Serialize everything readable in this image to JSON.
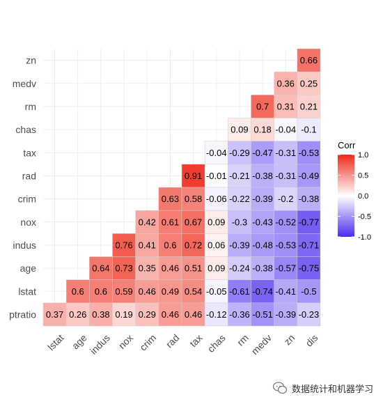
{
  "chart_data": {
    "type": "heatmap",
    "row_labels": [
      "zn",
      "medv",
      "rm",
      "chas",
      "tax",
      "rad",
      "crim",
      "nox",
      "indus",
      "age",
      "lstat",
      "ptratio"
    ],
    "col_labels": [
      "lstat",
      "age",
      "indus",
      "nox",
      "crim",
      "rad",
      "tax",
      "chas",
      "rm",
      "medv",
      "zn",
      "dis"
    ],
    "values": [
      [
        null,
        null,
        null,
        null,
        null,
        null,
        null,
        null,
        null,
        null,
        null,
        0.66
      ],
      [
        null,
        null,
        null,
        null,
        null,
        null,
        null,
        null,
        null,
        null,
        0.36,
        0.25
      ],
      [
        null,
        null,
        null,
        null,
        null,
        null,
        null,
        null,
        null,
        0.7,
        0.31,
        0.21
      ],
      [
        null,
        null,
        null,
        null,
        null,
        null,
        null,
        null,
        0.09,
        0.18,
        -0.04,
        -0.1
      ],
      [
        null,
        null,
        null,
        null,
        null,
        null,
        null,
        -0.04,
        -0.29,
        -0.47,
        -0.31,
        -0.53
      ],
      [
        null,
        null,
        null,
        null,
        null,
        null,
        0.91,
        -0.01,
        -0.21,
        -0.38,
        -0.31,
        -0.49
      ],
      [
        null,
        null,
        null,
        null,
        null,
        0.63,
        0.58,
        -0.06,
        -0.22,
        -0.39,
        -0.2,
        -0.38
      ],
      [
        null,
        null,
        null,
        null,
        0.42,
        0.61,
        0.67,
        0.09,
        -0.3,
        -0.43,
        -0.52,
        -0.77
      ],
      [
        null,
        null,
        null,
        0.76,
        0.41,
        0.6,
        0.72,
        0.06,
        -0.39,
        -0.48,
        -0.53,
        -0.71
      ],
      [
        null,
        null,
        0.64,
        0.73,
        0.35,
        0.46,
        0.51,
        0.09,
        -0.24,
        -0.38,
        -0.57,
        -0.75
      ],
      [
        null,
        0.6,
        0.6,
        0.59,
        0.46,
        0.49,
        0.54,
        -0.05,
        -0.61,
        -0.74,
        -0.41,
        -0.5
      ],
      [
        0.37,
        0.26,
        0.38,
        0.19,
        0.29,
        0.46,
        0.46,
        -0.12,
        -0.36,
        -0.51,
        -0.39,
        -0.23
      ]
    ],
    "range": [
      -1,
      1
    ],
    "colors": {
      "low": "#4b2cf0",
      "mid": "#ffffff",
      "high": "#ee2a18"
    },
    "legend": {
      "title": "Corr",
      "position": "right",
      "ticks": [
        "1.0",
        "0.5",
        "0.0",
        "-0.5",
        "-1.0"
      ],
      "tick_values": [
        1.0,
        0.5,
        0.0,
        -0.5,
        -1.0
      ]
    },
    "grid": true
  },
  "watermark": {
    "text": "数据统计和机器学习",
    "icon": "chat-bubble-icon"
  }
}
